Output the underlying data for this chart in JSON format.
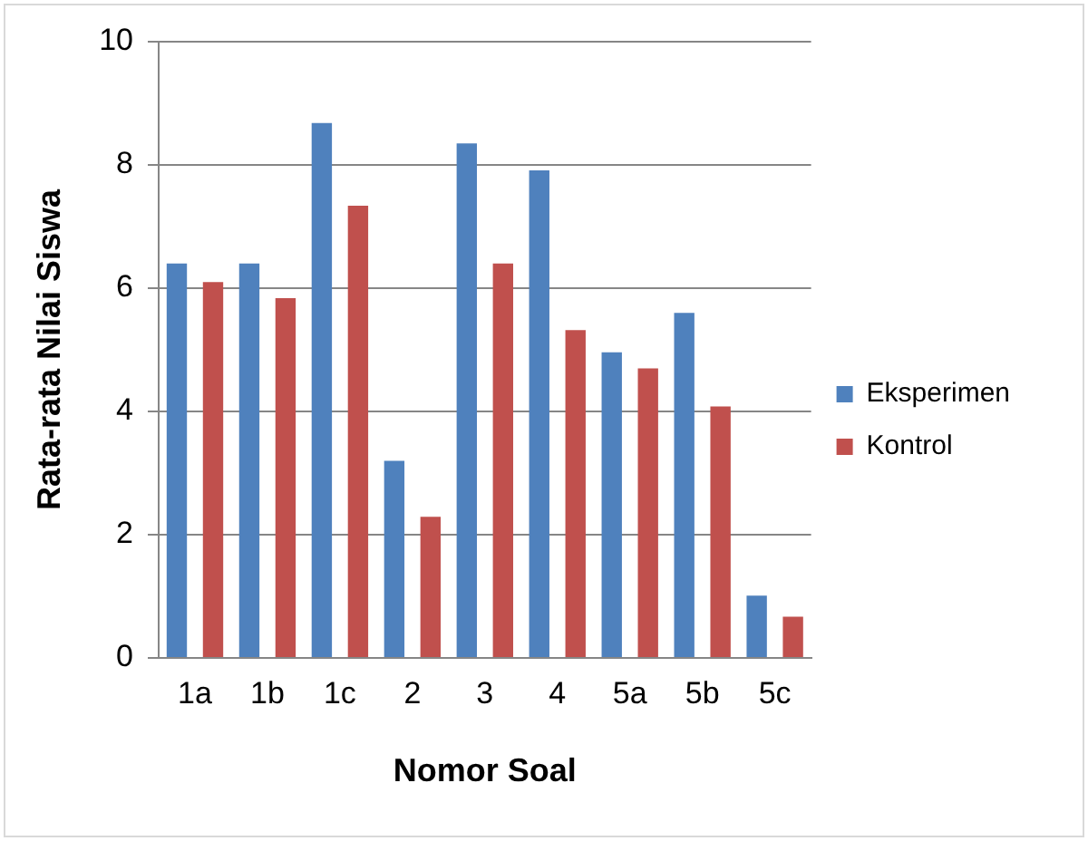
{
  "chart_data": {
    "type": "bar",
    "xlabel": "Nomor Soal",
    "ylabel": "Rata-rata Nilai Siswa",
    "categories": [
      "1a",
      "1b",
      "1c",
      "2",
      "3",
      "4",
      "5a",
      "5b",
      "5c"
    ],
    "series": [
      {
        "name": "Eksperimen",
        "color": "#4f81bd",
        "values": [
          6.4,
          6.4,
          8.68,
          3.2,
          8.35,
          7.91,
          4.96,
          5.6,
          1.01
        ]
      },
      {
        "name": "Kontrol",
        "color": "#c0504d",
        "values": [
          6.1,
          5.84,
          7.34,
          2.29,
          6.4,
          5.32,
          4.7,
          4.08,
          0.67
        ]
      }
    ],
    "ylim": [
      0,
      10
    ],
    "yticks": [
      0,
      2,
      4,
      6,
      8,
      10
    ],
    "grid": "y",
    "legend": "right"
  }
}
